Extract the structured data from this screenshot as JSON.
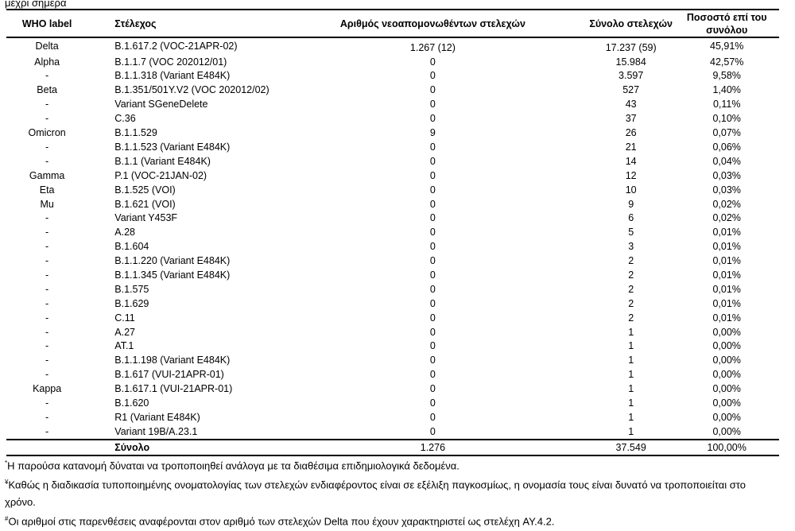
{
  "top_cut_text": "μέχρι σήμερα",
  "headers": {
    "who": "WHO label",
    "strain": "Στέλεχος",
    "new": "Αριθμός νεοαπομονωθέντων στελεχών",
    "total": "Σύνολο στελεχών",
    "pct": "Ποσοστό επί του συνόλου"
  },
  "rows": [
    [
      "Delta",
      "B.1.617.2 (VOC-21APR-02)",
      "1.267 (12)",
      "17.237 (59)",
      "45,91%"
    ],
    [
      "Alpha",
      "B.1.1.7 (VOC 202012/01)",
      "0",
      "15.984",
      "42,57%"
    ],
    [
      "-",
      "B.1.1.318 (Variant E484K)",
      "0",
      "3.597",
      "9,58%"
    ],
    [
      "Beta",
      "B.1.351/501Y.V2 (VOC 202012/02)",
      "0",
      "527",
      "1,40%"
    ],
    [
      "-",
      "Variant SGeneDelete",
      "0",
      "43",
      "0,11%"
    ],
    [
      "-",
      "C.36",
      "0",
      "37",
      "0,10%"
    ],
    [
      "Omicron",
      "B.1.1.529",
      "9",
      "26",
      "0,07%"
    ],
    [
      "-",
      "B.1.1.523 (Variant E484K)",
      "0",
      "21",
      "0,06%"
    ],
    [
      "-",
      "B.1.1 (Variant E484K)",
      "0",
      "14",
      "0,04%"
    ],
    [
      "Gamma",
      "P.1 (VOC-21JAN-02)",
      "0",
      "12",
      "0,03%"
    ],
    [
      "Eta",
      "B.1.525 (VOI)",
      "0",
      "10",
      "0,03%"
    ],
    [
      "Mu",
      "B.1.621 (VOI)",
      "0",
      "9",
      "0,02%"
    ],
    [
      "-",
      "Variant Y453F",
      "0",
      "6",
      "0,02%"
    ],
    [
      "-",
      "A.28",
      "0",
      "5",
      "0,01%"
    ],
    [
      "-",
      "B.1.604",
      "0",
      "3",
      "0,01%"
    ],
    [
      "-",
      "B.1.1.220 (Variant E484K)",
      "0",
      "2",
      "0,01%"
    ],
    [
      "-",
      "B.1.1.345 (Variant E484K)",
      "0",
      "2",
      "0,01%"
    ],
    [
      "-",
      "B.1.575",
      "0",
      "2",
      "0,01%"
    ],
    [
      "-",
      "B.1.629",
      "0",
      "2",
      "0,01%"
    ],
    [
      "-",
      "C.11",
      "0",
      "2",
      "0,01%"
    ],
    [
      "-",
      "A.27",
      "0",
      "1",
      "0,00%"
    ],
    [
      "-",
      "AT.1",
      "0",
      "1",
      "0,00%"
    ],
    [
      "-",
      "B.1.1.198 (Variant E484K)",
      "0",
      "1",
      "0,00%"
    ],
    [
      "-",
      "B.1.617 (VUI-21APR-01)",
      "0",
      "1",
      "0,00%"
    ],
    [
      "Kappa",
      "B.1.617.1 (VUI-21APR-01)",
      "0",
      "1",
      "0,00%"
    ],
    [
      "-",
      "B.1.620",
      "0",
      "1",
      "0,00%"
    ],
    [
      "-",
      "R1 (Variant E484K)",
      "0",
      "1",
      "0,00%"
    ],
    [
      "-",
      "Variant 19B/A.23.1",
      "0",
      "1",
      "0,00%"
    ]
  ],
  "delta_mark": "#",
  "total": {
    "label": "Σύνολο",
    "new": "1.276",
    "total": "37.549",
    "pct": "100,00%"
  },
  "notes": [
    {
      "mark": "*",
      "text": "Η παρούσα κατανομή δύναται να τροποποιηθεί ανάλογα με τα διαθέσιμα επιδημιολογικά δεδομένα."
    },
    {
      "mark": "¥",
      "text": "Καθώς η διαδικασία τυποποιημένης ονοματολογίας των στελεχών ενδιαφέροντος είναι σε εξέλιξη παγκοσμίως, η ονομασία τους είναι δυνατό να τροποποιείται στο χρόνο."
    },
    {
      "mark": "#",
      "text": "Οι αριθμοί στις παρενθέσεις αναφέρονται στον αριθμό των στελεχών Delta που έχουν χαρακτηριστεί ως στελέχη AY.4.2."
    }
  ]
}
